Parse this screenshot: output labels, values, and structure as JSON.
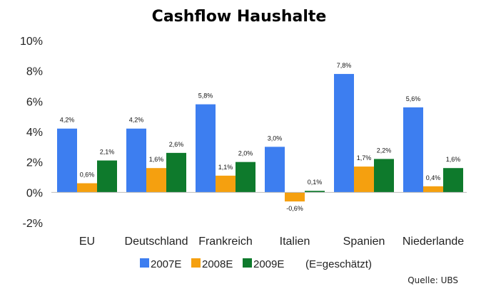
{
  "chart_data": {
    "type": "bar",
    "title": "Cashflow Haushalte",
    "categories": [
      "EU",
      "Deutschland",
      "Frankreich",
      "Italien",
      "Spanien",
      "Niederlande"
    ],
    "series": [
      {
        "name": "2007E",
        "color": "#3d7ef0",
        "values": [
          4.2,
          4.2,
          5.8,
          3.0,
          7.8,
          5.6
        ],
        "labels": [
          "4,2%",
          "4,2%",
          "5,8%",
          "3,0%",
          "7,8%",
          "5,6%"
        ]
      },
      {
        "name": "2008E",
        "color": "#f5a00f",
        "values": [
          0.6,
          1.6,
          1.1,
          -0.6,
          1.7,
          0.4
        ],
        "labels": [
          "0,6%",
          "1,6%",
          "1,1%",
          "-0,6%",
          "1,7%",
          "0,4%"
        ]
      },
      {
        "name": "2009E",
        "color": "#0e7a2c",
        "values": [
          2.1,
          2.6,
          2.0,
          0.1,
          2.2,
          1.6
        ],
        "labels": [
          "2,1%",
          "2,6%",
          "2,0%",
          "0,1%",
          "2,2%",
          "1,6%"
        ]
      }
    ],
    "ylim": [
      -2,
      10
    ],
    "yticks": [
      -2,
      0,
      2,
      4,
      6,
      8,
      10
    ],
    "ytick_labels": [
      "-2%",
      "0%",
      "2%",
      "4%",
      "6%",
      "8%",
      "10%"
    ],
    "legend_note": "(E=geschätzt)",
    "legend_position": "bottom",
    "grid": false,
    "source": "Quelle: UBS"
  }
}
